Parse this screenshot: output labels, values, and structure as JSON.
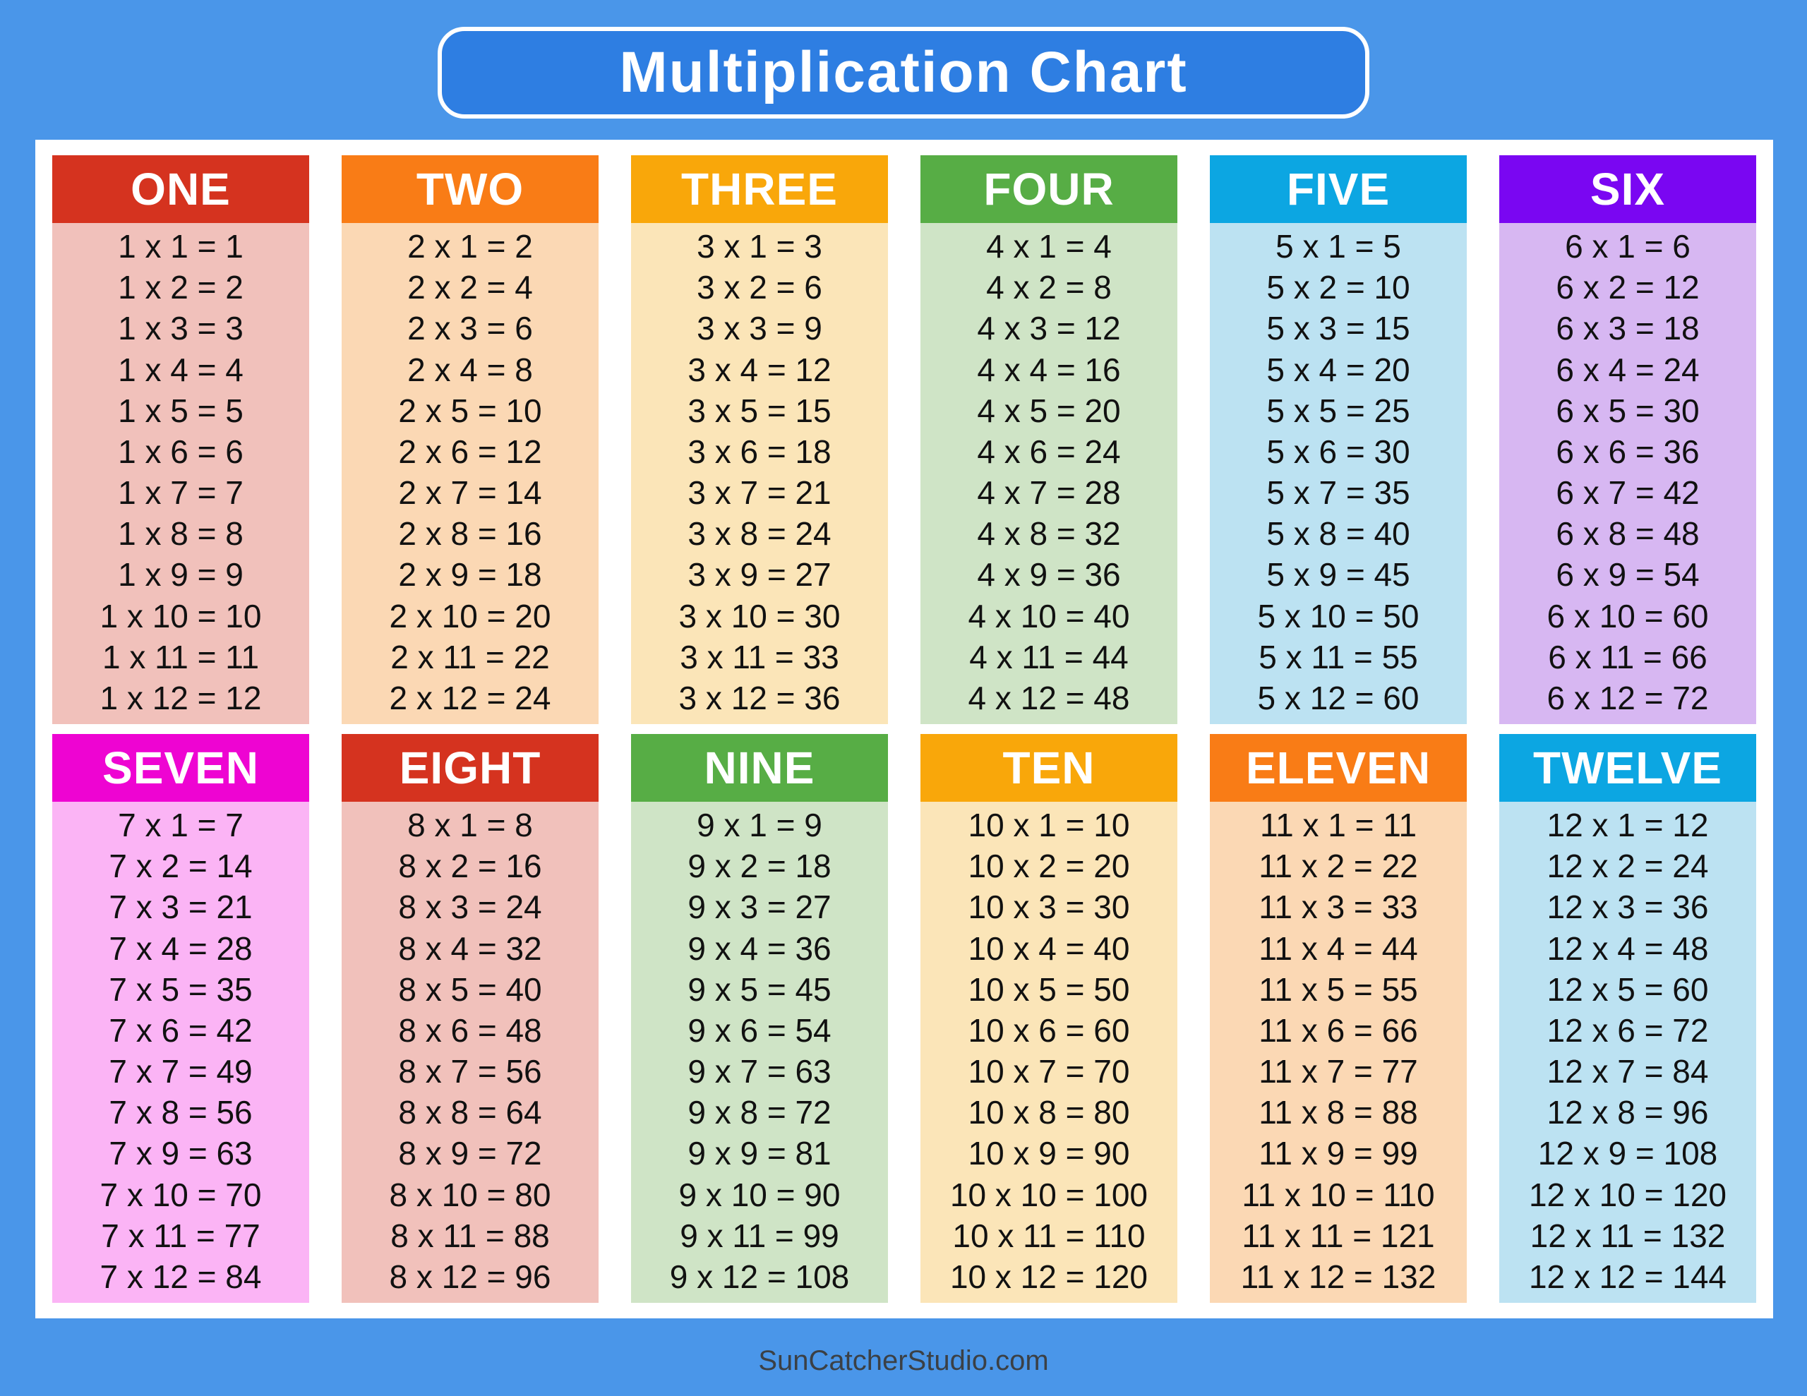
{
  "title": "Multiplication Chart",
  "footer": "SunCatcherStudio.com",
  "colors": {
    "page_background": "#4a96e9",
    "banner_background": "#2e7ee2",
    "banner_border": "#ffffff",
    "panel_background": "#ffffff",
    "fact_text": "#111111",
    "footer_text": "#3b4045"
  },
  "tables": [
    {
      "label": "ONE",
      "header_color": "#d5331f",
      "body_color": "#f1c1bb",
      "facts": [
        "1 x 1 = 1",
        "1 x 2 = 2",
        "1 x 3 = 3",
        "1 x 4 = 4",
        "1 x 5 = 5",
        "1 x 6 = 6",
        "1 x 7 = 7",
        "1 x 8 = 8",
        "1 x 9 = 9",
        "1 x 10 = 10",
        "1 x 11 = 11",
        "1 x 12 = 12"
      ]
    },
    {
      "label": "TWO",
      "header_color": "#f97c16",
      "body_color": "#fbd8b4",
      "facts": [
        "2 x 1 = 2",
        "2 x 2 = 4",
        "2 x 3 = 6",
        "2 x 4 = 8",
        "2 x 5 = 10",
        "2 x 6 = 12",
        "2 x 7 = 14",
        "2 x 8 = 16",
        "2 x 9 = 18",
        "2 x 10 = 20",
        "2 x 11 = 22",
        "2 x 12 = 24"
      ]
    },
    {
      "label": "THREE",
      "header_color": "#f9a70a",
      "body_color": "#fbe5b8",
      "facts": [
        "3 x 1 = 3",
        "3 x 2 = 6",
        "3 x 3 = 9",
        "3 x 4 = 12",
        "3 x 5 = 15",
        "3 x 6 = 18",
        "3 x 7 = 21",
        "3 x 8 = 24",
        "3 x 9 = 27",
        "3 x 10 = 30",
        "3 x 11 = 33",
        "3 x 12 = 36"
      ]
    },
    {
      "label": "FOUR",
      "header_color": "#57ad45",
      "body_color": "#cfe4c6",
      "facts": [
        "4 x 1 = 4",
        "4 x 2 = 8",
        "4 x 3 = 12",
        "4 x 4 = 16",
        "4 x 5 = 20",
        "4 x 6 = 24",
        "4 x 7 = 28",
        "4 x 8 = 32",
        "4 x 9 = 36",
        "4 x 10 = 40",
        "4 x 11 = 44",
        "4 x 12 = 48"
      ]
    },
    {
      "label": "FIVE",
      "header_color": "#0ca6e2",
      "body_color": "#bce2f2",
      "facts": [
        "5 x 1 = 5",
        "5 x 2 = 10",
        "5 x 3 = 15",
        "5 x 4 = 20",
        "5 x 5 = 25",
        "5 x 6 = 30",
        "5 x 7 = 35",
        "5 x 8 = 40",
        "5 x 9 = 45",
        "5 x 10 = 50",
        "5 x 11 = 55",
        "5 x 12 = 60"
      ]
    },
    {
      "label": "SIX",
      "header_color": "#7a06f2",
      "body_color": "#d7b7f2",
      "facts": [
        "6 x 1 = 6",
        "6 x 2 = 12",
        "6 x 3 = 18",
        "6 x 4 = 24",
        "6 x 5 = 30",
        "6 x 6 = 36",
        "6 x 7 = 42",
        "6 x 8 = 48",
        "6 x 9 = 54",
        "6 x 10 = 60",
        "6 x 11 = 66",
        "6 x 12 = 72"
      ]
    },
    {
      "label": "SEVEN",
      "header_color": "#ee04d2",
      "body_color": "#fbb4f5",
      "facts": [
        "7 x 1 = 7",
        "7 x 2 = 14",
        "7 x 3 = 21",
        "7 x 4 = 28",
        "7 x 5 = 35",
        "7 x 6 = 42",
        "7 x 7 = 49",
        "7 x 8 = 56",
        "7 x 9 = 63",
        "7 x 10 = 70",
        "7 x 11 = 77",
        "7 x 12 = 84"
      ]
    },
    {
      "label": "EIGHT",
      "header_color": "#d5331f",
      "body_color": "#f1c1bb",
      "facts": [
        "8 x 1 = 8",
        "8 x 2 = 16",
        "8 x 3 = 24",
        "8 x 4 = 32",
        "8 x 5 = 40",
        "8 x 6 = 48",
        "8 x 7 = 56",
        "8 x 8 = 64",
        "8 x 9 = 72",
        "8 x 10 = 80",
        "8 x 11 = 88",
        "8 x 12 = 96"
      ]
    },
    {
      "label": "NINE",
      "header_color": "#57ad45",
      "body_color": "#cfe4c6",
      "facts": [
        "9 x 1 = 9",
        "9 x 2 = 18",
        "9 x 3 = 27",
        "9 x 4 = 36",
        "9 x 5 = 45",
        "9 x 6 = 54",
        "9 x 7 = 63",
        "9 x 8 = 72",
        "9 x 9 = 81",
        "9 x 10 = 90",
        "9 x 11 = 99",
        "9 x 12 = 108"
      ]
    },
    {
      "label": "TEN",
      "header_color": "#f9a70a",
      "body_color": "#fbe5b8",
      "facts": [
        "10 x 1 = 10",
        "10 x 2 = 20",
        "10 x 3 = 30",
        "10 x 4 = 40",
        "10 x 5 = 50",
        "10 x 6 = 60",
        "10 x 7 = 70",
        "10 x 8 = 80",
        "10 x 9 = 90",
        "10 x 10 = 100",
        "10 x 11 = 110",
        "10 x 12 = 120"
      ]
    },
    {
      "label": "ELEVEN",
      "header_color": "#f97c16",
      "body_color": "#fbd8b4",
      "facts": [
        "11 x 1 = 11",
        "11 x 2 = 22",
        "11 x 3 = 33",
        "11 x 4 = 44",
        "11 x 5 = 55",
        "11 x 6 = 66",
        "11 x 7 = 77",
        "11 x 8 = 88",
        "11 x 9 = 99",
        "11 x 10 = 110",
        "11 x 11 = 121",
        "11 x 12 = 132"
      ]
    },
    {
      "label": "TWELVE",
      "header_color": "#0ca6e2",
      "body_color": "#bce2f2",
      "facts": [
        "12 x 1 = 12",
        "12 x 2 = 24",
        "12 x 3 = 36",
        "12 x 4 = 48",
        "12 x 5 = 60",
        "12 x 6 = 72",
        "12 x 7 = 84",
        "12 x 8 = 96",
        "12 x 9 = 108",
        "12 x 10 = 120",
        "12 x 11 = 132",
        "12 x 12 = 144"
      ]
    }
  ]
}
